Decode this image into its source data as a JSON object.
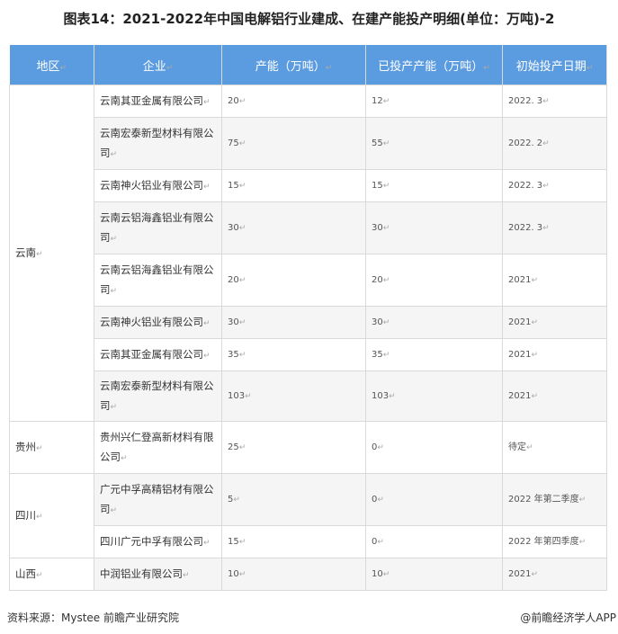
{
  "title": "图表14：2021-2022年中国电解铝行业建成、在建产能投产明细(单位：万吨)-2",
  "headers": [
    "地区",
    "企业",
    "产能（万吨）",
    "已投产产能（万吨）",
    "初始投产日期"
  ],
  "regions": [
    {
      "name": "云南",
      "rows": [
        {
          "company": "云南其亚金属有限公司",
          "capacity": "20",
          "operating": "12",
          "date": "2022. 3"
        },
        {
          "company": "云南宏泰新型材料有限公司",
          "capacity": "75",
          "operating": "55",
          "date": "2022. 2"
        },
        {
          "company": "云南神火铝业有限公司",
          "capacity": "15",
          "operating": "15",
          "date": "2022. 3"
        },
        {
          "company": "云南云铝海鑫铝业有限公司",
          "capacity": "30",
          "operating": "30",
          "date": "2022. 3"
        },
        {
          "company": "云南云铝海鑫铝业有限公司",
          "capacity": "20",
          "operating": "20",
          "date": "2021"
        },
        {
          "company": "云南神火铝业有限公司",
          "capacity": "30",
          "operating": "30",
          "date": "2021"
        },
        {
          "company": "云南其亚金属有限公司",
          "capacity": "35",
          "operating": "35",
          "date": "2021"
        },
        {
          "company": "云南宏泰新型材料有限公司",
          "capacity": "103",
          "operating": "103",
          "date": "2021"
        }
      ]
    },
    {
      "name": "贵州",
      "rows": [
        {
          "company": "贵州兴仁登高新材料有限公司",
          "capacity": "25",
          "operating": "0",
          "date": "待定"
        }
      ]
    },
    {
      "name": "四川",
      "rows": [
        {
          "company": "广元中孚高精铝材有限公司",
          "capacity": "5",
          "operating": "0",
          "date": "2022 年第二季度"
        },
        {
          "company": "四川广元中孚有限公司",
          "capacity": "15",
          "operating": "0",
          "date": "2022 年第四季度"
        }
      ]
    },
    {
      "name": "山西",
      "rows": [
        {
          "company": "中润铝业有限公司",
          "capacity": "10",
          "operating": "10",
          "date": "2021"
        }
      ]
    }
  ],
  "footer": {
    "source": "资料来源：Mystee 前瞻产业研究院",
    "credit": "@前瞻经济学人APP"
  }
}
